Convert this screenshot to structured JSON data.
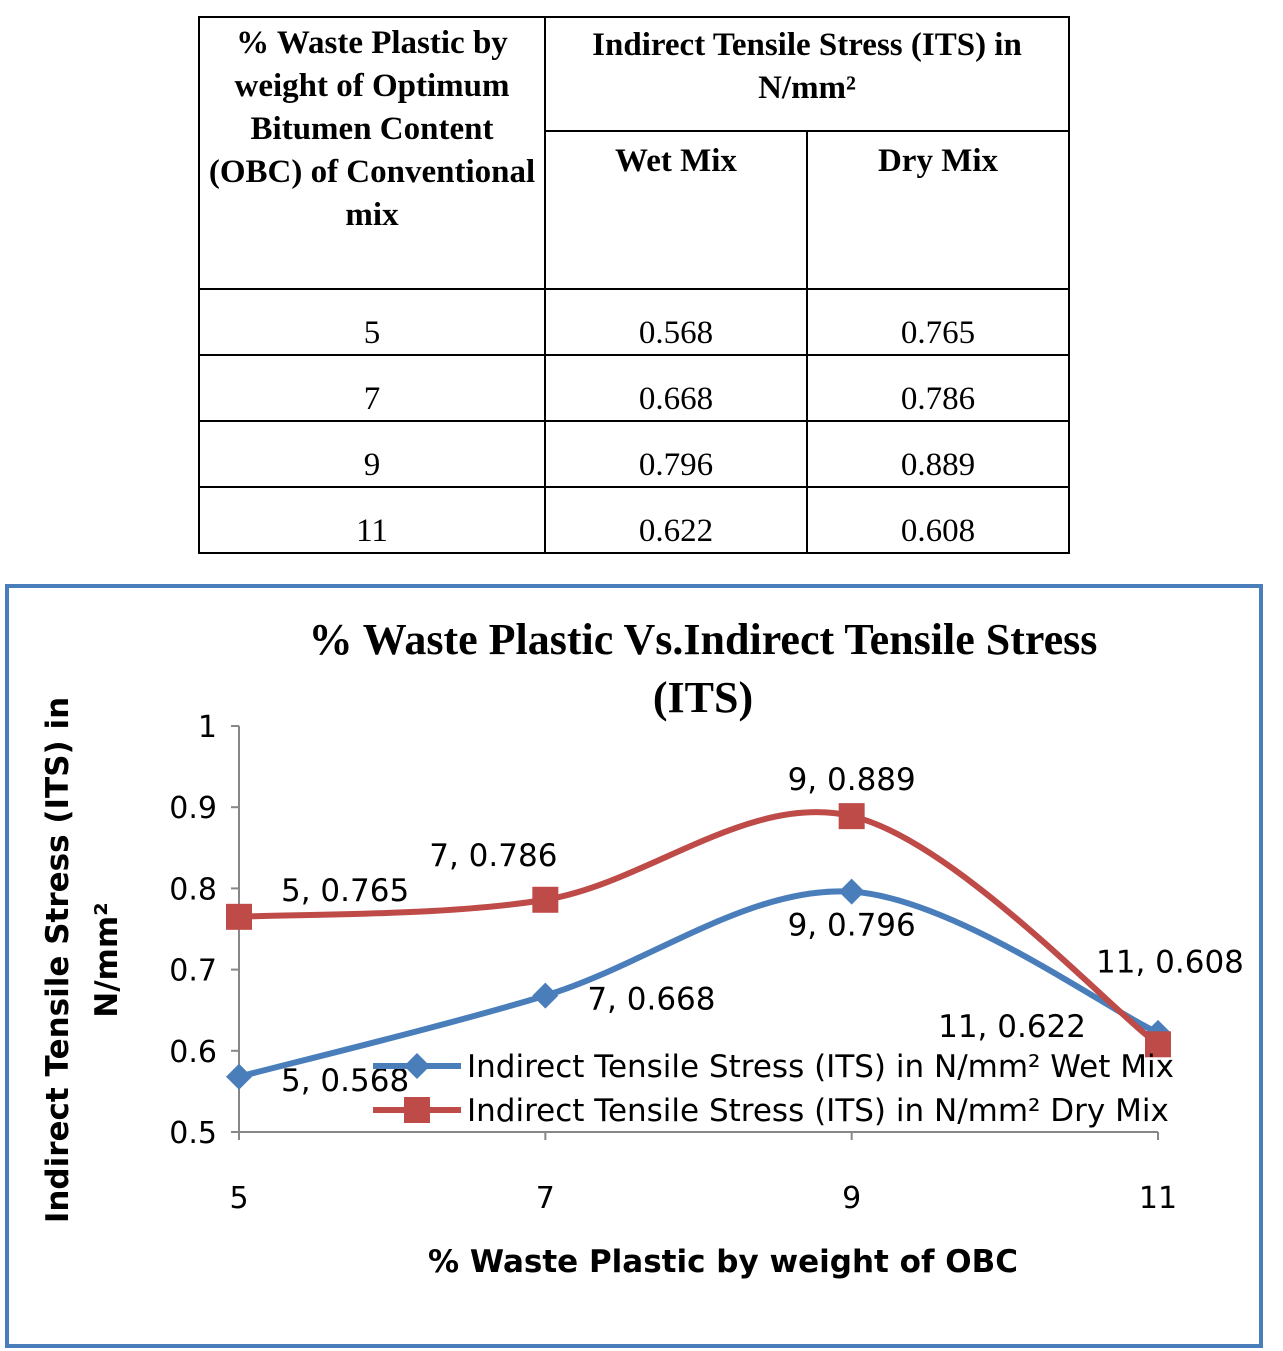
{
  "table": {
    "col1_header": "%  Waste Plastic by weight of Optimum Bitumen Content (OBC) of Conventional mix",
    "group_header": "Indirect Tensile Stress  (ITS) in N/mm²",
    "wet_header": "Wet Mix",
    "dry_header": "Dry Mix",
    "rows": [
      {
        "pct": "5",
        "wet": "0.568",
        "dry": "0.765"
      },
      {
        "pct": "7",
        "wet": "0.668",
        "dry": "0.786"
      },
      {
        "pct": "9",
        "wet": "0.796",
        "dry": "0.889"
      },
      {
        "pct": "11",
        "wet": "0.622",
        "dry": "0.608"
      }
    ]
  },
  "chart_data": {
    "type": "line",
    "title": "%  Waste Plastic  Vs.Indirect Tensile Stress (ITS)",
    "title_lines": [
      "%  Waste Plastic  Vs.Indirect Tensile Stress",
      "(ITS)"
    ],
    "xlabel": "%  Waste Plastic by weight of OBC",
    "ylabel": "Indirect Tensile Stress  (ITS) in N/mm²",
    "ylabel_lines": [
      "Indirect Tensile Stress  (ITS) in",
      "N/mm²"
    ],
    "x": [
      5,
      7,
      9,
      11
    ],
    "xticks": [
      "5",
      "7",
      "9",
      "11"
    ],
    "ylim": [
      0.5,
      1
    ],
    "yticks": [
      "0.5",
      "0.6",
      "0.7",
      "0.8",
      "0.9",
      "1"
    ],
    "grid": false,
    "smoothed": true,
    "legend_position": "bottom-right (inside plot)",
    "series": [
      {
        "name": "Indirect Tensile Stress  (ITS) in N/mm² Wet Mix",
        "values": [
          0.568,
          0.668,
          0.796,
          0.622
        ],
        "labels": [
          "5, 0.568",
          "7, 0.668",
          "9, 0.796",
          "11, 0.622"
        ],
        "color": "#4a7ebb",
        "marker": "diamond"
      },
      {
        "name": "Indirect Tensile Stress  (ITS) in N/mm² Dry Mix",
        "values": [
          0.765,
          0.786,
          0.889,
          0.608
        ],
        "labels": [
          "5, 0.765",
          "7, 0.786",
          "9, 0.889",
          "11, 0.608"
        ],
        "color": "#be4b48",
        "marker": "square"
      }
    ]
  }
}
